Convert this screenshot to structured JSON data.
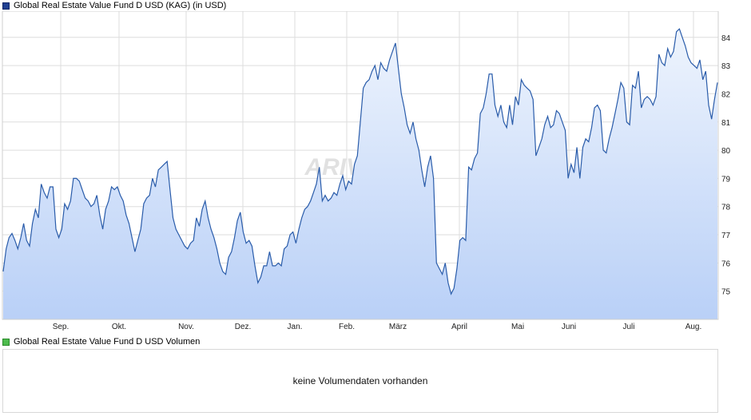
{
  "legend": {
    "price_label": "Global Real Estate Value Fund D USD (KAG)  (in USD)",
    "volume_label": "Global Real Estate Value Fund D USD Volumen"
  },
  "watermark": "ARIVA.DE",
  "volume": {
    "message": "keine Volumendaten vorhanden"
  },
  "colors": {
    "line": "#2a5caa",
    "fill_top": "#eef4fd",
    "fill_bottom": "#b9d0f7",
    "grid": "#dedede"
  },
  "chart_data": {
    "type": "area",
    "title": "Global Real Estate Value Fund D USD (KAG)  (in USD)",
    "currency": "USD",
    "x_ticks": [
      "Sep.",
      "Okt.",
      "Nov.",
      "Dez.",
      "Jan.",
      "Feb.",
      "März",
      "April",
      "Mai",
      "Juni",
      "Juli",
      "Aug."
    ],
    "y_ticks": [
      75,
      76,
      77,
      78,
      79,
      80,
      81,
      82,
      83,
      84
    ],
    "ylim": [
      74.0,
      84.9
    ],
    "grid": true,
    "y_axis_side": "right",
    "series": [
      {
        "values": [
          75.7,
          76.5,
          76.9,
          77.05,
          76.8,
          76.5,
          76.9,
          77.4,
          76.8,
          76.6,
          77.4,
          77.9,
          77.6,
          78.8,
          78.5,
          78.3,
          78.7,
          78.7,
          77.2,
          76.9,
          77.2,
          78.1,
          77.9,
          78.2,
          79.0,
          79.0,
          78.9,
          78.6,
          78.3,
          78.2,
          78.0,
          78.1,
          78.4,
          77.7,
          77.2,
          77.9,
          78.2,
          78.7,
          78.6,
          78.7,
          78.4,
          78.2,
          77.7,
          77.4,
          76.9,
          76.4,
          76.8,
          77.2,
          78.1,
          78.3,
          78.4,
          79.0,
          78.7,
          79.3,
          79.4,
          79.5,
          79.6,
          78.6,
          77.6,
          77.2,
          77.0,
          76.8,
          76.6,
          76.5,
          76.7,
          76.8,
          77.6,
          77.3,
          77.9,
          78.2,
          77.6,
          77.2,
          76.9,
          76.5,
          76.0,
          75.7,
          75.6,
          76.2,
          76.4,
          76.9,
          77.5,
          77.8,
          77.1,
          76.7,
          76.8,
          76.6,
          75.9,
          75.3,
          75.5,
          75.9,
          75.9,
          76.4,
          75.9,
          75.9,
          76.0,
          75.9,
          76.5,
          76.6,
          77.0,
          77.1,
          76.7,
          77.2,
          77.6,
          77.9,
          78.0,
          78.2,
          78.5,
          78.8,
          79.4,
          78.2,
          78.4,
          78.2,
          78.3,
          78.5,
          78.4,
          78.8,
          79.1,
          78.6,
          78.9,
          78.8,
          79.5,
          79.8,
          81.0,
          82.2,
          82.4,
          82.5,
          82.8,
          83.0,
          82.5,
          83.1,
          82.9,
          82.8,
          83.2,
          83.5,
          83.8,
          82.9,
          82.0,
          81.5,
          80.9,
          80.6,
          81.0,
          80.4,
          80.0,
          79.3,
          78.7,
          79.4,
          79.8,
          79.0,
          76.0,
          75.8,
          75.6,
          76.0,
          75.3,
          74.9,
          75.1,
          75.8,
          76.8,
          76.9,
          76.8,
          79.4,
          79.3,
          79.7,
          79.9,
          81.3,
          81.5,
          82.0,
          82.7,
          82.7,
          81.6,
          81.2,
          81.6,
          81.0,
          80.8,
          81.6,
          80.9,
          81.9,
          81.6,
          82.5,
          82.3,
          82.2,
          82.1,
          81.8,
          79.8,
          80.1,
          80.4,
          80.9,
          81.2,
          80.8,
          80.9,
          81.4,
          81.3,
          81.0,
          80.7,
          79.0,
          79.5,
          79.2,
          80.1,
          79.0,
          80.1,
          80.4,
          80.3,
          80.8,
          81.5,
          81.6,
          81.4,
          80.0,
          79.9,
          80.4,
          80.8,
          81.3,
          81.8,
          82.4,
          82.2,
          81.0,
          80.9,
          82.3,
          82.2,
          82.8,
          81.5,
          81.8,
          81.9,
          81.8,
          81.6,
          81.9,
          83.4,
          83.1,
          83.0,
          83.6,
          83.3,
          83.5,
          84.2,
          84.3,
          84.0,
          83.7,
          83.3,
          83.1,
          83.0,
          82.9,
          83.2,
          82.5,
          82.8,
          81.6,
          81.1,
          81.8,
          82.4
        ]
      }
    ]
  }
}
